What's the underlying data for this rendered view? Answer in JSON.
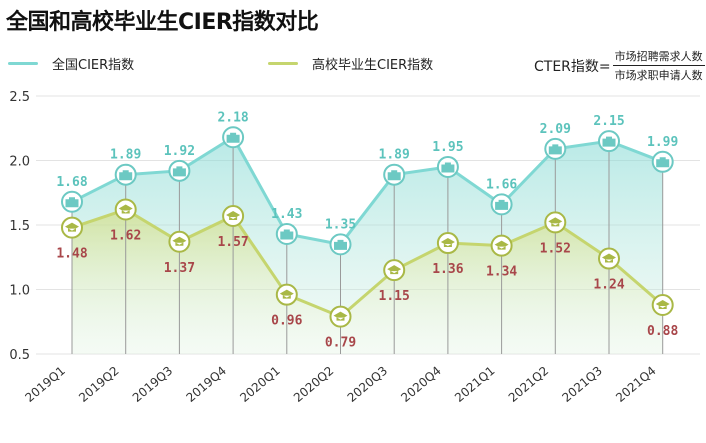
{
  "title": "全国和高校毕业生CIER指数对比",
  "legend": {
    "national": "全国CIER指数",
    "graduate": "高校毕业生CIER指数"
  },
  "formula": {
    "label": "CTER指数=",
    "numerator": "市场招聘需求人数",
    "denominator": "市场求职申请人数"
  },
  "colors": {
    "national": "#7fd8d3",
    "graduate": "#c5d56e",
    "graduate_label": "#a8464a",
    "national_label": "#5cc3bc"
  },
  "chart_data": {
    "type": "area",
    "categories": [
      "2019Q1",
      "2019Q2",
      "2019Q3",
      "2019Q4",
      "2020Q1",
      "2020Q2",
      "2020Q3",
      "2020Q4",
      "2021Q1",
      "2021Q2",
      "2021Q3",
      "2021Q4"
    ],
    "series": [
      {
        "name": "全国CIER指数",
        "values": [
          1.68,
          1.89,
          1.92,
          2.18,
          1.43,
          1.35,
          1.89,
          1.95,
          1.66,
          2.09,
          2.15,
          1.99
        ]
      },
      {
        "name": "高校毕业生CIER指数",
        "values": [
          1.48,
          1.62,
          1.37,
          1.57,
          0.96,
          0.79,
          1.15,
          1.36,
          1.34,
          1.52,
          1.24,
          0.88
        ]
      }
    ],
    "value_labels": {
      "national": [
        "1.68",
        "1.89",
        "1.92",
        "2.18",
        "1.43",
        "1.35",
        "1.89",
        "1.95",
        "1.66",
        "2.09",
        "2.15",
        "1.99"
      ],
      "graduate": [
        "1.48",
        "1.62",
        "1.37",
        "1.57",
        "0.96",
        "0.79",
        "1.15",
        "1.36",
        "1.34",
        "1.52",
        "1.24",
        "0.88"
      ]
    },
    "yticks": [
      "0.5",
      "1.0",
      "1.5",
      "2.0",
      "2.5"
    ],
    "ylim": [
      0.5,
      2.5
    ],
    "grid": true
  }
}
